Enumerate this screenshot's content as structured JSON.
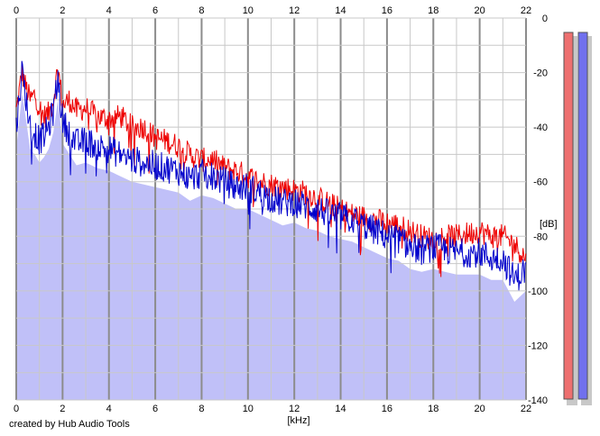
{
  "footer": {
    "credit": "created by Hub Audio Tools"
  },
  "meters": {
    "left": {
      "color": "#ee7070",
      "level": 1.0
    },
    "right": {
      "color": "#7070ee",
      "level": 1.0
    }
  },
  "chart_data": {
    "type": "line",
    "title": "",
    "xlabel": "[kHz]",
    "ylabel": "[dB]",
    "xlim": [
      0,
      22
    ],
    "ylim": [
      -140,
      0
    ],
    "x_ticks": [
      0,
      2,
      4,
      6,
      8,
      10,
      12,
      14,
      16,
      18,
      20,
      22
    ],
    "y_ticks": [
      0,
      -20,
      -40,
      -60,
      -80,
      -100,
      -120,
      -140
    ],
    "x_tick_labels_position": "top and bottom",
    "y_tick_labels_position": "right",
    "grid": true,
    "colors": {
      "grid_minor": "#c8c8c8",
      "grid_major": "#8c8c8c",
      "fill": "#c0c0f8"
    },
    "series": [
      {
        "color": "#ee0000",
        "x": [
          0,
          0.25,
          0.4,
          0.6,
          0.8,
          1.0,
          1.2,
          1.4,
          1.6,
          1.8,
          2.0,
          2.3,
          2.6,
          3.0,
          3.5,
          4.0,
          4.5,
          5.0,
          5.5,
          6.0,
          6.5,
          7.0,
          7.5,
          8.0,
          8.5,
          9.0,
          9.5,
          10.0,
          10.5,
          11.0,
          11.5,
          12.0,
          12.5,
          13.0,
          13.5,
          14.0,
          14.5,
          15.0,
          15.5,
          16.0,
          16.5,
          17.0,
          17.5,
          18.0,
          18.5,
          19.0,
          19.5,
          20.0,
          20.5,
          21.0,
          21.5,
          22.0
        ],
        "values": [
          -34,
          -20,
          -25,
          -30,
          -28,
          -33,
          -36,
          -35,
          -30,
          -18,
          -32,
          -30,
          -34,
          -33,
          -36,
          -37,
          -36,
          -40,
          -40,
          -44,
          -45,
          -47,
          -50,
          -52,
          -52,
          -55,
          -56,
          -58,
          -60,
          -61,
          -62,
          -63,
          -64,
          -66,
          -68,
          -70,
          -72,
          -73,
          -74,
          -75,
          -76,
          -78,
          -80,
          -81,
          -80,
          -80,
          -79,
          -78,
          -80,
          -80,
          -83,
          -88
        ]
      },
      {
        "color": "#0000cc",
        "x": [
          0,
          0.25,
          0.4,
          0.6,
          0.8,
          1.0,
          1.2,
          1.4,
          1.6,
          1.8,
          2.0,
          2.3,
          2.6,
          3.0,
          3.5,
          4.0,
          4.5,
          5.0,
          5.5,
          6.0,
          6.5,
          7.0,
          7.5,
          8.0,
          8.5,
          9.0,
          9.5,
          10.0,
          10.5,
          11.0,
          11.5,
          12.0,
          12.5,
          13.0,
          13.5,
          14.0,
          14.5,
          15.0,
          15.5,
          16.0,
          16.5,
          17.0,
          17.5,
          18.0,
          18.5,
          19.0,
          19.5,
          20.0,
          20.5,
          21.0,
          21.5,
          22.0
        ],
        "values": [
          -40,
          -19,
          -28,
          -40,
          -42,
          -45,
          -43,
          -40,
          -34,
          -22,
          -38,
          -42,
          -46,
          -45,
          -47,
          -48,
          -50,
          -52,
          -53,
          -54,
          -55,
          -56,
          -59,
          -57,
          -58,
          -60,
          -62,
          -62,
          -64,
          -66,
          -68,
          -67,
          -69,
          -70,
          -72,
          -73,
          -74,
          -76,
          -78,
          -80,
          -81,
          -84,
          -85,
          -84,
          -85,
          -86,
          -86,
          -86,
          -88,
          -88,
          -96,
          -92
        ]
      }
    ]
  }
}
